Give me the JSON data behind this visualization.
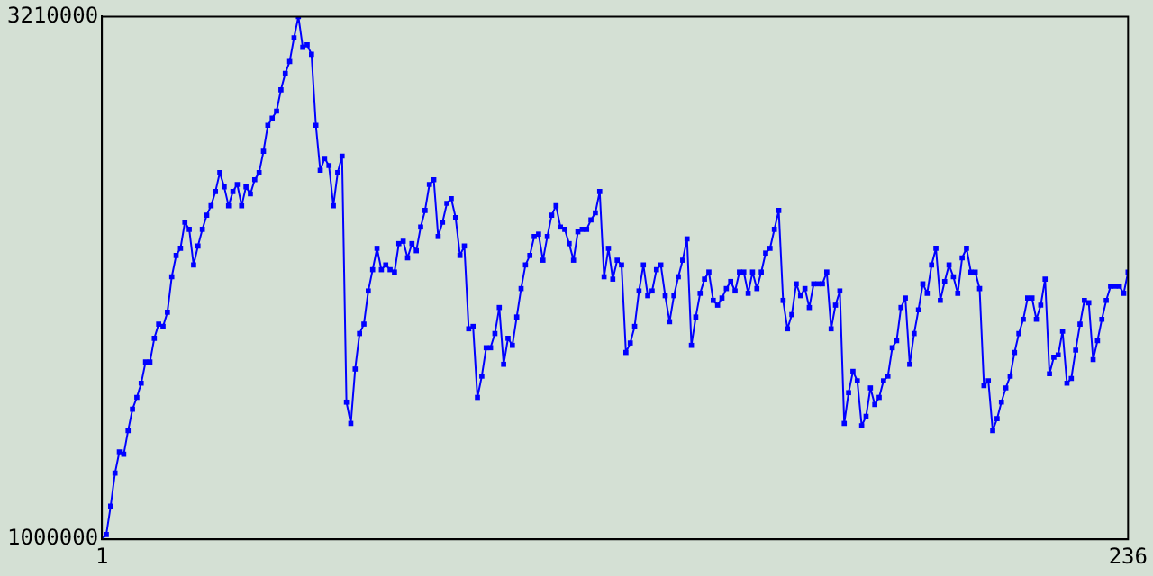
{
  "chart_data": {
    "type": "line",
    "marker": "square",
    "line_style": "solid",
    "xlim": [
      1,
      236
    ],
    "xticks": [
      1,
      236
    ],
    "ylim": [
      1000000,
      3210000
    ],
    "yticks": [
      1000000,
      3210000
    ],
    "x": [
      1,
      2,
      3,
      4,
      5,
      6,
      7,
      8,
      9,
      10,
      11,
      12,
      13,
      14,
      15,
      16,
      17,
      18,
      19,
      20,
      21,
      22,
      23,
      24,
      25,
      26,
      27,
      28,
      29,
      30,
      31,
      32,
      33,
      34,
      35,
      36,
      37,
      38,
      39,
      40,
      41,
      42,
      43,
      44,
      45,
      46,
      47,
      48,
      49,
      50,
      51,
      52,
      53,
      54,
      55,
      56,
      57,
      58,
      59,
      60,
      61,
      62,
      63,
      64,
      65,
      66,
      67,
      68,
      69,
      70,
      71,
      72,
      73,
      74,
      75,
      76,
      77,
      78,
      79,
      80,
      81,
      82,
      83,
      84,
      85,
      86,
      87,
      88,
      89,
      90,
      91,
      92,
      93,
      94,
      95,
      96,
      97,
      98,
      99,
      100,
      101,
      102,
      103,
      104,
      105,
      106,
      107,
      108,
      109,
      110,
      111,
      112,
      113,
      114,
      115,
      116,
      117,
      118,
      119,
      120,
      121,
      122,
      123,
      124,
      125,
      126,
      127,
      128,
      129,
      130,
      131,
      132,
      133,
      134,
      135,
      136,
      137,
      138,
      139,
      140,
      141,
      142,
      143,
      144,
      145,
      146,
      147,
      148,
      149,
      150,
      151,
      152,
      153,
      154,
      155,
      156,
      157,
      158,
      159,
      160,
      161,
      162,
      163,
      164,
      165,
      166,
      167,
      168,
      169,
      170,
      171,
      172,
      173,
      174,
      175,
      176,
      177,
      178,
      179,
      180,
      181,
      182,
      183,
      184,
      185,
      186,
      187,
      188,
      189,
      190,
      191,
      192,
      193,
      194,
      195,
      196,
      197,
      198,
      199,
      200,
      201,
      202,
      203,
      204,
      205,
      206,
      207,
      208,
      209,
      210,
      211,
      212,
      213,
      214,
      215,
      216,
      217,
      218,
      219,
      220,
      221,
      222,
      223,
      224,
      225,
      226,
      227,
      228,
      229,
      230,
      231,
      232,
      233,
      234,
      235,
      236
    ],
    "series": [
      {
        "color": "#0000ff",
        "values": [
          1000000,
          1020000,
          1140000,
          1280000,
          1370000,
          1360000,
          1460000,
          1550000,
          1600000,
          1660000,
          1750000,
          1750000,
          1850000,
          1910000,
          1900000,
          1960000,
          2110000,
          2200000,
          2230000,
          2340000,
          2310000,
          2160000,
          2240000,
          2310000,
          2370000,
          2410000,
          2470000,
          2550000,
          2490000,
          2410000,
          2470000,
          2500000,
          2410000,
          2490000,
          2460000,
          2520000,
          2550000,
          2640000,
          2750000,
          2780000,
          2810000,
          2900000,
          2970000,
          3020000,
          3120000,
          3210000,
          3080000,
          3090000,
          3050000,
          2750000,
          2560000,
          2610000,
          2580000,
          2410000,
          2550000,
          2620000,
          1580000,
          1490000,
          1720000,
          1870000,
          1910000,
          2050000,
          2140000,
          2230000,
          2140000,
          2160000,
          2140000,
          2130000,
          2250000,
          2260000,
          2190000,
          2250000,
          2220000,
          2320000,
          2390000,
          2500000,
          2520000,
          2280000,
          2340000,
          2420000,
          2440000,
          2360000,
          2200000,
          2240000,
          1890000,
          1900000,
          1600000,
          1690000,
          1810000,
          1810000,
          1870000,
          1980000,
          1740000,
          1850000,
          1820000,
          1940000,
          2060000,
          2160000,
          2200000,
          2280000,
          2290000,
          2180000,
          2280000,
          2370000,
          2410000,
          2320000,
          2310000,
          2250000,
          2180000,
          2300000,
          2310000,
          2310000,
          2350000,
          2380000,
          2470000,
          2110000,
          2230000,
          2100000,
          2180000,
          2160000,
          1790000,
          1830000,
          1900000,
          2050000,
          2160000,
          2030000,
          2050000,
          2140000,
          2160000,
          2030000,
          1920000,
          2030000,
          2110000,
          2180000,
          2270000,
          1820000,
          1940000,
          2040000,
          2100000,
          2130000,
          2010000,
          1990000,
          2020000,
          2060000,
          2090000,
          2050000,
          2130000,
          2130000,
          2040000,
          2130000,
          2060000,
          2130000,
          2210000,
          2230000,
          2310000,
          2390000,
          2010000,
          1890000,
          1950000,
          2080000,
          2030000,
          2060000,
          1980000,
          2080000,
          2080000,
          2080000,
          2130000,
          1890000,
          1990000,
          2050000,
          1490000,
          1620000,
          1710000,
          1670000,
          1480000,
          1520000,
          1640000,
          1570000,
          1600000,
          1670000,
          1690000,
          1810000,
          1840000,
          1980000,
          2020000,
          1740000,
          1870000,
          1970000,
          2080000,
          2040000,
          2160000,
          2230000,
          2010000,
          2090000,
          2160000,
          2110000,
          2040000,
          2190000,
          2230000,
          2130000,
          2130000,
          2060000,
          1650000,
          1670000,
          1460000,
          1510000,
          1580000,
          1640000,
          1690000,
          1790000,
          1870000,
          1930000,
          2020000,
          2020000,
          1930000,
          1990000,
          2100000,
          1700000,
          1770000,
          1780000,
          1880000,
          1660000,
          1680000,
          1800000,
          1910000,
          2010000,
          2000000,
          1760000,
          1840000,
          1930000,
          2010000,
          2070000,
          2070000,
          2070000,
          2040000,
          2130000
        ]
      }
    ]
  }
}
